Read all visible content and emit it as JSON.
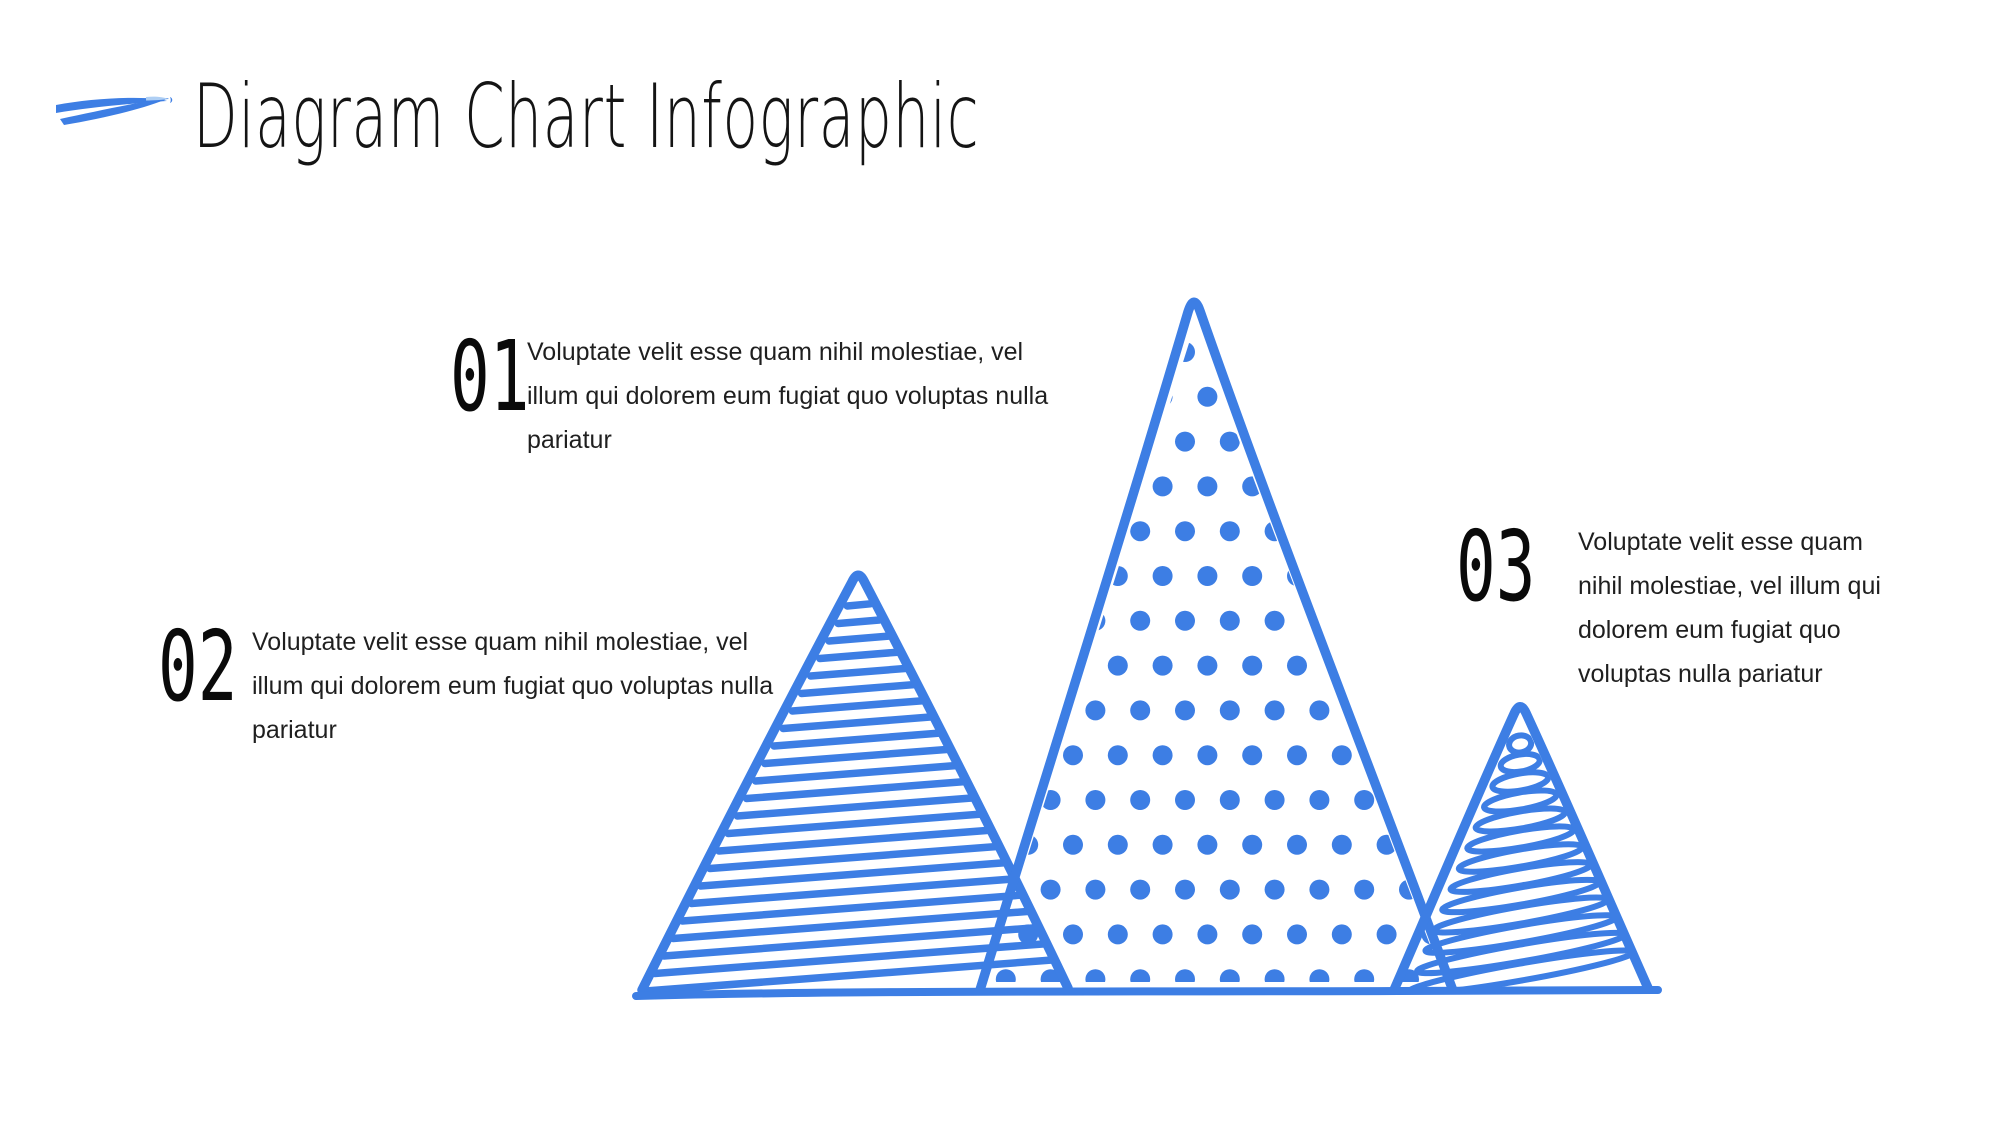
{
  "slide": {
    "title": "Diagram Chart Infographic"
  },
  "logo": {
    "icon": "swoosh-icon"
  },
  "items": [
    {
      "number": "01",
      "text": "Voluptate velit esse quam nihil molestiae, vel\nillum qui dolorem eum fugiat quo voluptas nulla\npariatur"
    },
    {
      "number": "02",
      "text": "Voluptate velit esse quam nihil molestiae, vel\nillum qui dolorem eum fugiat quo voluptas nulla\npariatur"
    },
    {
      "number": "03",
      "text": "Voluptate velit esse quam\nnihil molestiae, vel illum qui\ndolorem eum fugiat quo\nvoluptas nulla pariatur"
    }
  ],
  "diagram": {
    "type": "triangle-mountains-infographic",
    "triangles": [
      {
        "position": "left",
        "pattern": "horizontal-scribble-lines"
      },
      {
        "position": "middle",
        "pattern": "polka-dots"
      },
      {
        "position": "right",
        "pattern": "loop-scribble"
      }
    ]
  },
  "colors": {
    "background": "#FFFFFF",
    "accent": "#3D7EE4",
    "accent_light": "#AFCFF4",
    "title": "#141414",
    "text": "#1F1F1F",
    "number": "#0A0A0A"
  }
}
